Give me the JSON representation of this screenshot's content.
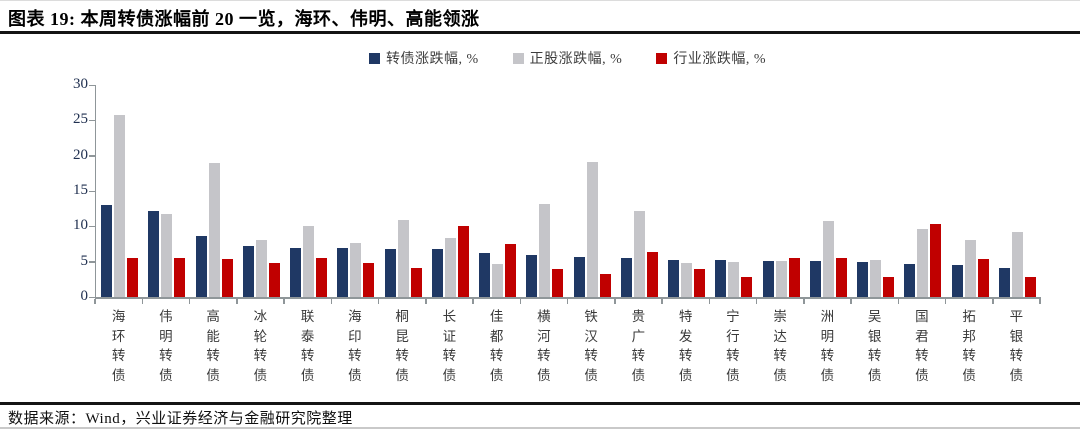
{
  "header": {
    "title": "图表 19:  本周转债涨幅前 20 一览，海环、伟明、高能领涨"
  },
  "source_note": "数据来源：Wind，兴业证券经济与金融研究院整理",
  "colors": {
    "bond_series": "#1F3864",
    "stock_series": "#C5C5C9",
    "industry_series": "#C00000",
    "axis": "#8f9699",
    "rule": "#141414"
  },
  "chart_data": {
    "type": "bar",
    "title": "本周转债涨幅前 20 一览",
    "xlabel": "",
    "ylabel": "",
    "ylim": [
      0,
      30
    ],
    "yticks": [
      0,
      5,
      10,
      15,
      20,
      25,
      30
    ],
    "grid": false,
    "legend_position": "top-center",
    "categories": [
      "海环转债",
      "伟明转债",
      "高能转债",
      "冰轮转债",
      "联泰转债",
      "海印转债",
      "桐昆转债",
      "长证转债",
      "佳都转债",
      "横河转债",
      "铁汉转债",
      "贵广转债",
      "特发转债",
      "宁行转债",
      "崇达转债",
      "洲明转债",
      "吴银转债",
      "国君转债",
      "拓邦转债",
      "平银转债"
    ],
    "series": [
      {
        "name": "转债涨跌幅, %",
        "color": "#1F3864",
        "values": [
          13.0,
          12.1,
          8.6,
          7.2,
          7.0,
          6.9,
          6.8,
          6.8,
          6.2,
          6.0,
          5.7,
          5.5,
          5.3,
          5.2,
          5.1,
          5.1,
          4.9,
          4.6,
          4.5,
          4.1
        ]
      },
      {
        "name": "正股涨跌幅, %",
        "color": "#C5C5C9",
        "values": [
          25.7,
          11.8,
          19.0,
          8.0,
          10.1,
          7.6,
          10.9,
          8.4,
          4.6,
          13.1,
          19.1,
          12.1,
          4.8,
          4.9,
          5.1,
          10.7,
          5.3,
          9.6,
          8.1,
          9.2
        ]
      },
      {
        "name": "行业涨跌幅, %",
        "color": "#C00000",
        "values": [
          5.5,
          5.5,
          5.4,
          4.8,
          5.5,
          4.8,
          4.1,
          10.1,
          7.5,
          4.0,
          3.2,
          6.4,
          4.0,
          2.9,
          5.5,
          5.5,
          2.9,
          10.3,
          5.4,
          2.8
        ]
      }
    ]
  }
}
